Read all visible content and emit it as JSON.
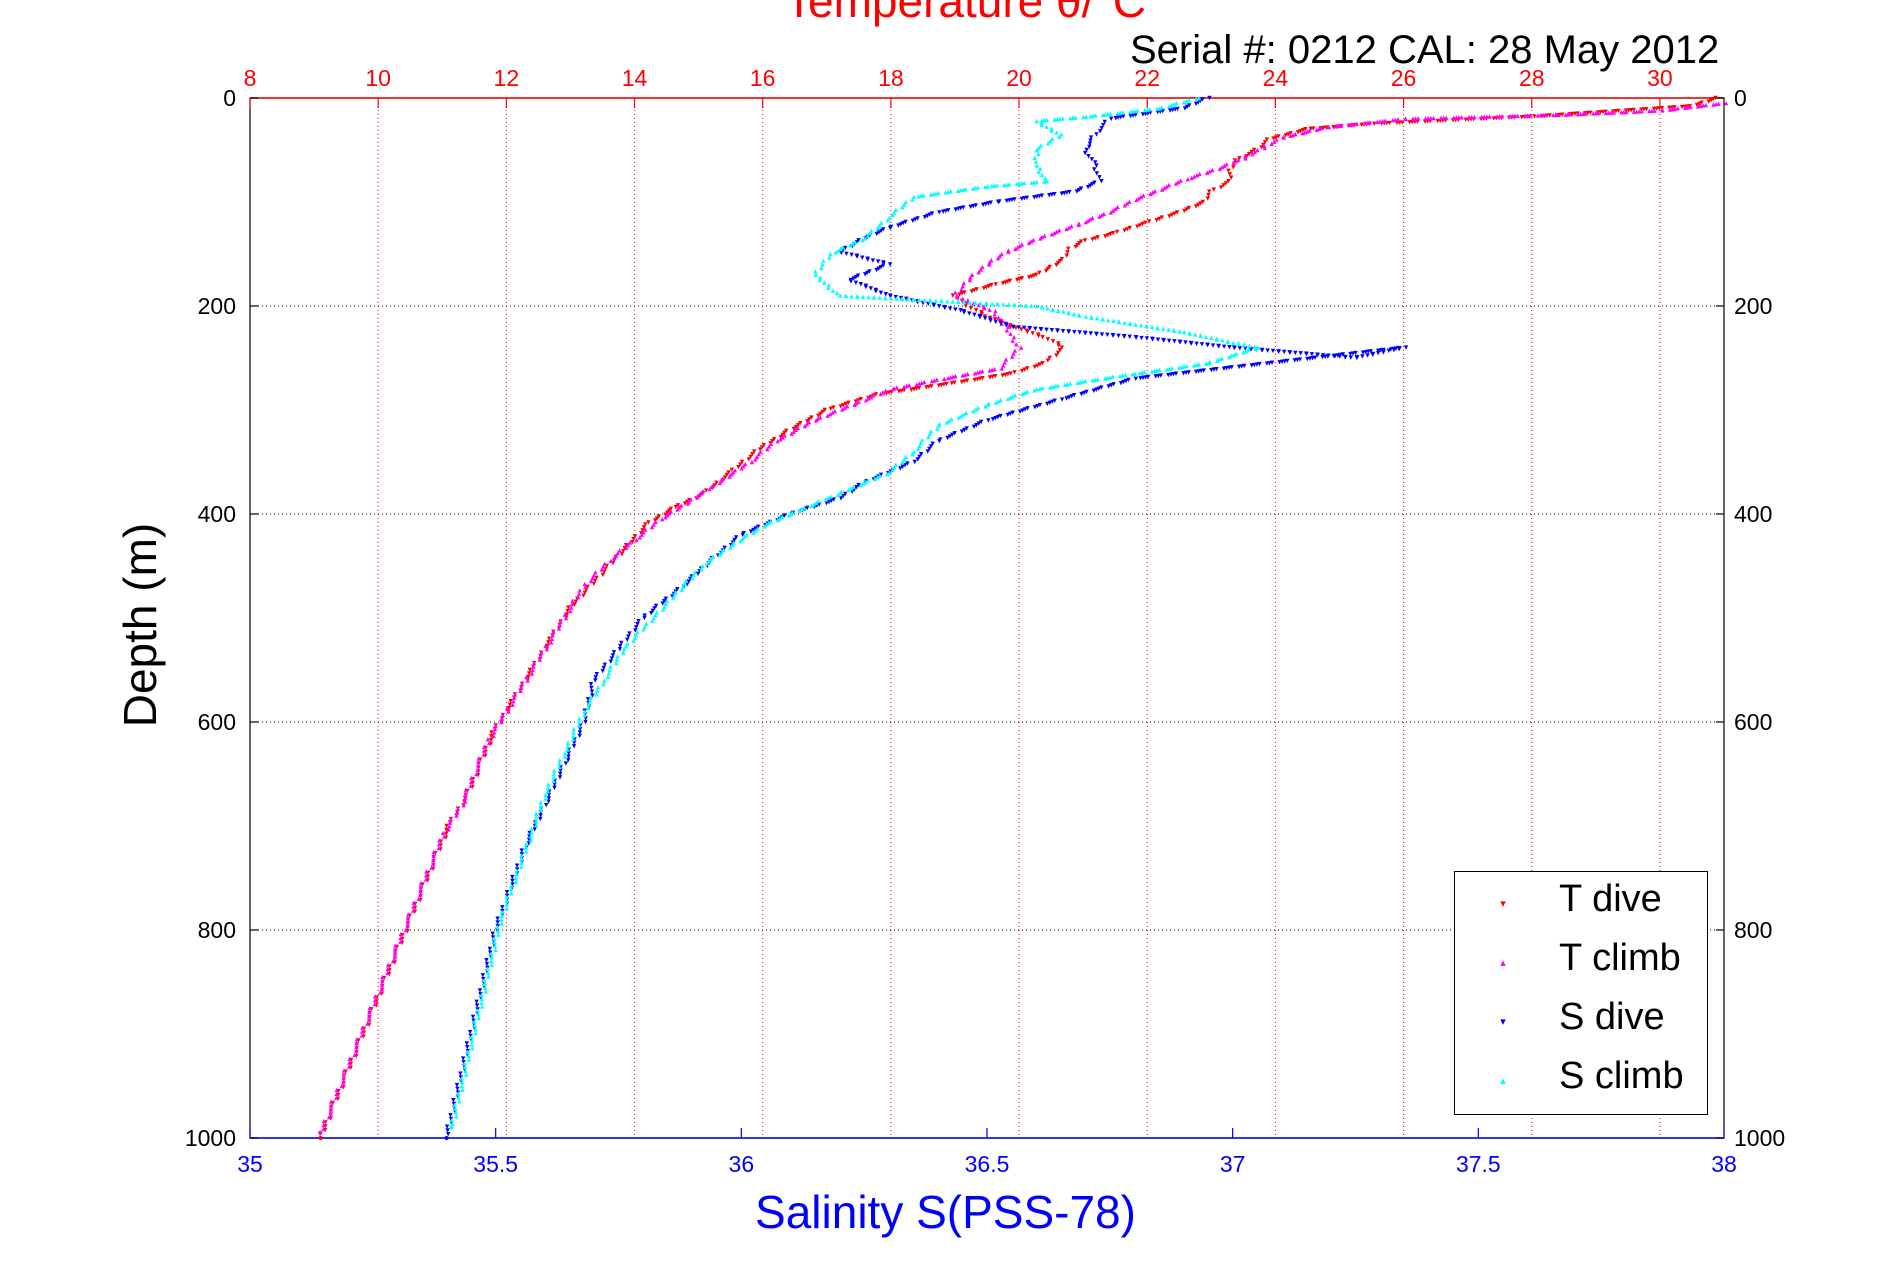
{
  "chart_data": {
    "type": "scatter",
    "title": "Temperature θ/°C",
    "subtitle": "Serial #: 0212  CAL: 28 May 2012",
    "xlabel": "Salinity S(PSS-78)",
    "ylabel": "Depth (m)",
    "x_top": {
      "label": "Temperature θ/°C",
      "range": [
        8,
        31
      ],
      "ticks": [
        8,
        10,
        12,
        14,
        16,
        18,
        20,
        22,
        24,
        26,
        28,
        30
      ],
      "color": "#ff0000"
    },
    "x_bottom": {
      "label": "Salinity S(PSS-78)",
      "range": [
        35,
        38
      ],
      "ticks": [
        35,
        35.5,
        36,
        36.5,
        37,
        37.5,
        38
      ],
      "color": "#0000ff"
    },
    "y": {
      "range": [
        0,
        1000
      ],
      "reversed": true,
      "ticks": [
        0,
        200,
        400,
        600,
        800,
        1000
      ]
    },
    "grid": true,
    "legend_position": "bottom-right",
    "series": [
      {
        "name": "T dive",
        "axis": "top",
        "marker": "down-triangle",
        "color": "#ff0000",
        "points": [
          [
            30.9,
            0
          ],
          [
            30.5,
            8
          ],
          [
            28.0,
            18
          ],
          [
            25.5,
            25
          ],
          [
            24.5,
            30
          ],
          [
            23.9,
            40
          ],
          [
            23.7,
            50
          ],
          [
            23.4,
            60
          ],
          [
            23.3,
            70
          ],
          [
            23.3,
            80
          ],
          [
            23.0,
            90
          ],
          [
            22.9,
            100
          ],
          [
            22.5,
            110
          ],
          [
            22.0,
            120
          ],
          [
            21.5,
            130
          ],
          [
            21.0,
            138
          ],
          [
            20.8,
            145
          ],
          [
            20.7,
            155
          ],
          [
            20.3,
            170
          ],
          [
            19.6,
            180
          ],
          [
            19.0,
            190
          ],
          [
            19.2,
            200
          ],
          [
            19.5,
            210
          ],
          [
            19.9,
            220
          ],
          [
            20.4,
            230
          ],
          [
            20.7,
            240
          ],
          [
            20.4,
            255
          ],
          [
            19.9,
            265
          ],
          [
            18.9,
            275
          ],
          [
            17.8,
            285
          ],
          [
            17.0,
            300
          ],
          [
            16.4,
            320
          ],
          [
            15.9,
            340
          ],
          [
            15.5,
            360
          ],
          [
            15.1,
            380
          ],
          [
            14.6,
            395
          ],
          [
            14.2,
            410
          ],
          [
            13.9,
            430
          ],
          [
            13.6,
            450
          ],
          [
            13.3,
            470
          ],
          [
            13.0,
            490
          ],
          [
            12.7,
            520
          ],
          [
            12.4,
            550
          ],
          [
            12.1,
            580
          ],
          [
            11.8,
            610
          ],
          [
            11.6,
            640
          ],
          [
            11.4,
            670
          ],
          [
            11.1,
            700
          ],
          [
            10.9,
            730
          ],
          [
            10.7,
            760
          ],
          [
            10.5,
            790
          ],
          [
            10.3,
            820
          ],
          [
            10.1,
            850
          ],
          [
            9.9,
            880
          ],
          [
            9.7,
            910
          ],
          [
            9.5,
            940
          ],
          [
            9.3,
            970
          ],
          [
            9.1,
            1000
          ]
        ]
      },
      {
        "name": "T climb",
        "axis": "top",
        "marker": "up-triangle",
        "color": "#ff00ff",
        "points": [
          [
            31.0,
            5
          ],
          [
            30.0,
            12
          ],
          [
            28.5,
            16
          ],
          [
            26.0,
            20
          ],
          [
            24.8,
            28
          ],
          [
            24.1,
            38
          ],
          [
            23.8,
            48
          ],
          [
            23.5,
            58
          ],
          [
            23.1,
            68
          ],
          [
            22.6,
            78
          ],
          [
            22.2,
            88
          ],
          [
            21.8,
            98
          ],
          [
            21.4,
            110
          ],
          [
            20.9,
            122
          ],
          [
            20.3,
            135
          ],
          [
            19.8,
            148
          ],
          [
            19.5,
            160
          ],
          [
            19.2,
            175
          ],
          [
            19.0,
            190
          ],
          [
            19.6,
            205
          ],
          [
            19.8,
            220
          ],
          [
            20.0,
            240
          ],
          [
            19.7,
            260
          ],
          [
            18.8,
            270
          ],
          [
            18.0,
            280
          ],
          [
            17.4,
            295
          ],
          [
            16.8,
            310
          ],
          [
            16.2,
            330
          ],
          [
            15.8,
            350
          ],
          [
            15.3,
            370
          ],
          [
            14.8,
            390
          ],
          [
            14.4,
            405
          ],
          [
            14.0,
            425
          ],
          [
            13.6,
            445
          ],
          [
            13.2,
            470
          ],
          [
            12.9,
            500
          ],
          [
            12.6,
            530
          ],
          [
            12.3,
            560
          ],
          [
            12.0,
            590
          ],
          [
            11.7,
            620
          ],
          [
            11.5,
            650
          ],
          [
            11.3,
            680
          ],
          [
            11.0,
            710
          ],
          [
            10.8,
            740
          ],
          [
            10.6,
            770
          ],
          [
            10.4,
            800
          ],
          [
            10.2,
            830
          ],
          [
            10.0,
            860
          ],
          [
            9.8,
            890
          ],
          [
            9.6,
            920
          ],
          [
            9.4,
            950
          ],
          [
            9.2,
            980
          ],
          [
            9.1,
            995
          ]
        ]
      },
      {
        "name": "S dive",
        "axis": "bottom",
        "marker": "down-triangle",
        "color": "#0000ff",
        "points": [
          [
            36.95,
            0
          ],
          [
            36.9,
            10
          ],
          [
            36.75,
            20
          ],
          [
            36.72,
            35
          ],
          [
            36.7,
            50
          ],
          [
            36.72,
            65
          ],
          [
            36.73,
            80
          ],
          [
            36.68,
            90
          ],
          [
            36.52,
            100
          ],
          [
            36.4,
            110
          ],
          [
            36.3,
            125
          ],
          [
            36.25,
            135
          ],
          [
            36.2,
            148
          ],
          [
            36.3,
            160
          ],
          [
            36.22,
            175
          ],
          [
            36.3,
            190
          ],
          [
            36.45,
            205
          ],
          [
            36.55,
            220
          ],
          [
            36.8,
            230
          ],
          [
            37.0,
            240
          ],
          [
            37.25,
            250
          ],
          [
            37.35,
            240
          ],
          [
            36.8,
            270
          ],
          [
            36.65,
            290
          ],
          [
            36.5,
            310
          ],
          [
            36.4,
            330
          ],
          [
            36.35,
            350
          ],
          [
            36.25,
            370
          ],
          [
            36.2,
            385
          ],
          [
            36.1,
            400
          ],
          [
            36.0,
            420
          ],
          [
            35.95,
            440
          ],
          [
            35.88,
            470
          ],
          [
            35.8,
            500
          ],
          [
            35.75,
            530
          ],
          [
            35.7,
            560
          ],
          [
            35.68,
            600
          ],
          [
            35.64,
            640
          ],
          [
            35.6,
            680
          ],
          [
            35.56,
            720
          ],
          [
            35.53,
            760
          ],
          [
            35.5,
            800
          ],
          [
            35.48,
            840
          ],
          [
            35.46,
            880
          ],
          [
            35.44,
            920
          ],
          [
            35.42,
            960
          ],
          [
            35.4,
            1000
          ]
        ]
      },
      {
        "name": "S climb",
        "axis": "bottom",
        "marker": "up-triangle",
        "color": "#00ffff",
        "points": [
          [
            36.93,
            0
          ],
          [
            36.85,
            10
          ],
          [
            36.7,
            18
          ],
          [
            36.6,
            22
          ],
          [
            36.65,
            35
          ],
          [
            36.6,
            50
          ],
          [
            36.6,
            65
          ],
          [
            36.62,
            80
          ],
          [
            36.5,
            85
          ],
          [
            36.35,
            95
          ],
          [
            36.3,
            115
          ],
          [
            36.25,
            135
          ],
          [
            36.18,
            150
          ],
          [
            36.15,
            170
          ],
          [
            36.2,
            190
          ],
          [
            36.6,
            200
          ],
          [
            36.7,
            210
          ],
          [
            36.9,
            225
          ],
          [
            37.05,
            240
          ],
          [
            36.95,
            255
          ],
          [
            36.8,
            265
          ],
          [
            36.6,
            280
          ],
          [
            36.5,
            295
          ],
          [
            36.4,
            315
          ],
          [
            36.35,
            340
          ],
          [
            36.3,
            360
          ],
          [
            36.2,
            380
          ],
          [
            36.1,
            400
          ],
          [
            36.05,
            410
          ],
          [
            35.98,
            430
          ],
          [
            35.92,
            450
          ],
          [
            35.88,
            470
          ],
          [
            35.82,
            500
          ],
          [
            35.76,
            530
          ],
          [
            35.72,
            560
          ],
          [
            35.68,
            590
          ],
          [
            35.64,
            630
          ],
          [
            35.6,
            670
          ],
          [
            35.57,
            710
          ],
          [
            35.54,
            750
          ],
          [
            35.51,
            790
          ],
          [
            35.49,
            830
          ],
          [
            35.47,
            870
          ],
          [
            35.45,
            910
          ],
          [
            35.43,
            950
          ],
          [
            35.41,
            990
          ]
        ]
      }
    ]
  }
}
